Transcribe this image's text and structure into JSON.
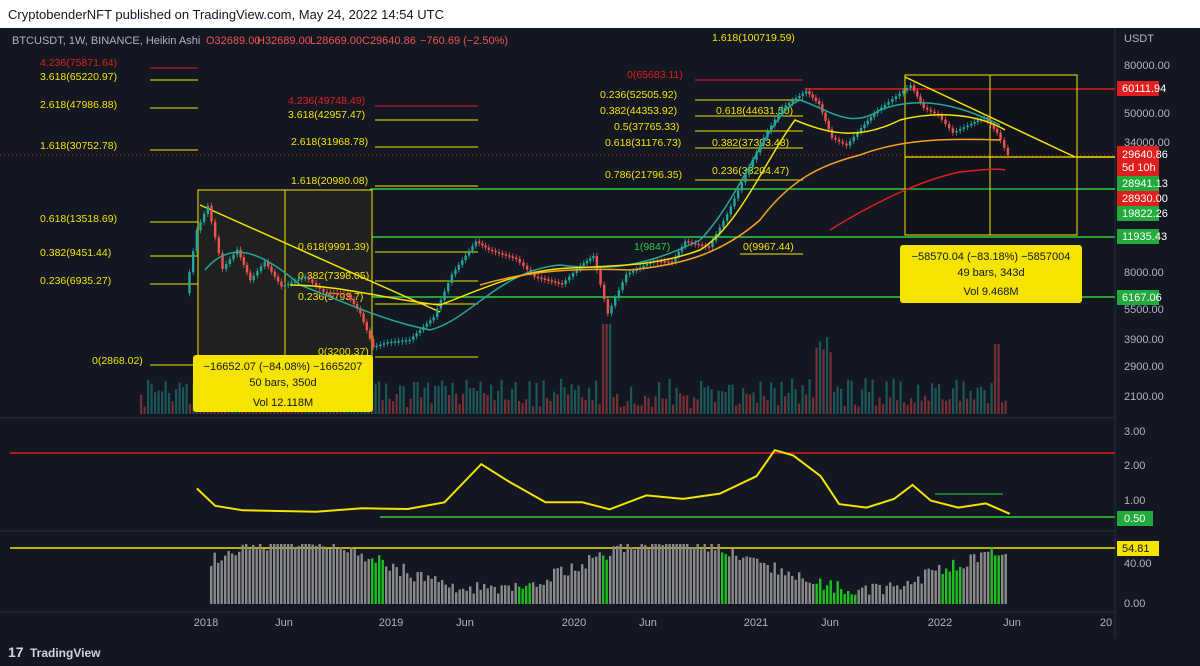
{
  "header": {
    "publisher": "CryptobenderNFT published on TradingView.com, May 24, 2022 14:54 UTC"
  },
  "legend": {
    "symbol": "BTCUSDT, 1W, BINANCE, Heikin Ashi",
    "open": "O32689.00",
    "high": "H32689.00",
    "low": "L28669.00",
    "close": "C29640.86",
    "change": "−760.69 (−2.50%)"
  },
  "footer": {
    "brand": "TradingView",
    "logo": "17"
  },
  "colors": {
    "bg": "#131722",
    "up": "#26a69a",
    "down": "#ef5350",
    "yellow": "#f5e300",
    "green": "#2ecc40",
    "red": "#e01e1e",
    "orange": "#f7a01d"
  },
  "chart_data": {
    "type": "line",
    "title": "",
    "x_axis": {
      "tick_labels": [
        "2018",
        "Jun",
        "2019",
        "Jun",
        "2020",
        "Jun",
        "2021",
        "Jun",
        "2022",
        "Jun",
        "20"
      ]
    },
    "price_axis": {
      "unit": "USDT",
      "scale": "log",
      "tick_labels": [
        "80000.00",
        "50000.00",
        "34000.00",
        "28930.00",
        "19822.26",
        "11935.43",
        "8000.00",
        "5500.00",
        "3900.00",
        "2900.00",
        "2100.00"
      ],
      "badges": [
        {
          "text": "60111.94",
          "color": "red"
        },
        {
          "text": "29640.86",
          "color": "red"
        },
        {
          "text": "5d 10h",
          "color": "red"
        },
        {
          "text": "28941.13",
          "color": "green"
        },
        {
          "text": "28930.00",
          "color": "red"
        },
        {
          "text": "19822.26",
          "color": "green"
        },
        {
          "text": "11935.43",
          "color": "green"
        },
        {
          "text": "6167.06",
          "color": "green"
        }
      ]
    },
    "fib_cycle_2017": {
      "labels": [
        "4.236(75871.64)",
        "3.618(65220.97)",
        "2.618(47986.88)",
        "1.618(30752.78)",
        "0.618(13518.69)",
        "0.382(9451.44)",
        "0.236(6935.27)",
        "0(2868.02)"
      ]
    },
    "fib_cycle_2019": {
      "labels": [
        "4.236(49748.49)",
        "3.618(42957.47)",
        "2.618(31968.78)",
        "1.618(20980.08)",
        "0.618(9991.39)",
        "0.382(7398.05)",
        "0.236(5793.7)",
        "0(3200.37)"
      ]
    },
    "fib_cycle_2021": {
      "labels": [
        "1.618(100719.59)",
        "0(65683.11)",
        "0.236(52505.92)",
        "0.382(44353.92)",
        "0.5(37765.33)",
        "0.618(31176.73)",
        "0.786(21796.35)",
        "0.618(44631.50)",
        "0.382(37393.48)",
        "0.236(33204.47)",
        "0(9967.44)",
        "1(9847)"
      ]
    },
    "measure_2018": {
      "lines": [
        "−16652.07 (−84.08%) −1665207",
        "50 bars, 350d",
        "Vol 12.118M"
      ]
    },
    "measure_2022": {
      "lines": [
        "−58570.04 (−83.18%) −5857004",
        "49 bars, 343d",
        "Vol 9.468M"
      ]
    },
    "price_series_weekly": [
      {
        "x": 2017.9,
        "p": 6500
      },
      {
        "x": 2017.96,
        "p": 13000
      },
      {
        "x": 2018.02,
        "p": 17000
      },
      {
        "x": 2018.06,
        "p": 12000
      },
      {
        "x": 2018.1,
        "p": 8500
      },
      {
        "x": 2018.18,
        "p": 10500
      },
      {
        "x": 2018.25,
        "p": 7500
      },
      {
        "x": 2018.33,
        "p": 9200
      },
      {
        "x": 2018.42,
        "p": 7000
      },
      {
        "x": 2018.55,
        "p": 7800
      },
      {
        "x": 2018.65,
        "p": 6600
      },
      {
        "x": 2018.78,
        "p": 6400
      },
      {
        "x": 2018.85,
        "p": 5200
      },
      {
        "x": 2018.92,
        "p": 3600
      },
      {
        "x": 2019.0,
        "p": 3800
      },
      {
        "x": 2019.12,
        "p": 3900
      },
      {
        "x": 2019.25,
        "p": 5000
      },
      {
        "x": 2019.35,
        "p": 8000
      },
      {
        "x": 2019.48,
        "p": 11500
      },
      {
        "x": 2019.55,
        "p": 10500
      },
      {
        "x": 2019.7,
        "p": 9500
      },
      {
        "x": 2019.8,
        "p": 7800
      },
      {
        "x": 2019.95,
        "p": 7200
      },
      {
        "x": 2020.05,
        "p": 8800
      },
      {
        "x": 2020.12,
        "p": 9800
      },
      {
        "x": 2020.2,
        "p": 5200
      },
      {
        "x": 2020.3,
        "p": 8000
      },
      {
        "x": 2020.45,
        "p": 9300
      },
      {
        "x": 2020.55,
        "p": 9200
      },
      {
        "x": 2020.62,
        "p": 11500
      },
      {
        "x": 2020.75,
        "p": 10800
      },
      {
        "x": 2020.85,
        "p": 15500
      },
      {
        "x": 2020.95,
        "p": 24000
      },
      {
        "x": 2021.05,
        "p": 36000
      },
      {
        "x": 2021.15,
        "p": 50000
      },
      {
        "x": 2021.28,
        "p": 60000
      },
      {
        "x": 2021.35,
        "p": 52000
      },
      {
        "x": 2021.42,
        "p": 36000
      },
      {
        "x": 2021.5,
        "p": 33000
      },
      {
        "x": 2021.58,
        "p": 40000
      },
      {
        "x": 2021.65,
        "p": 47000
      },
      {
        "x": 2021.75,
        "p": 55000
      },
      {
        "x": 2021.85,
        "p": 64000
      },
      {
        "x": 2021.92,
        "p": 50000
      },
      {
        "x": 2022.0,
        "p": 46000
      },
      {
        "x": 2022.08,
        "p": 38000
      },
      {
        "x": 2022.18,
        "p": 42000
      },
      {
        "x": 2022.25,
        "p": 45000
      },
      {
        "x": 2022.32,
        "p": 38000
      },
      {
        "x": 2022.38,
        "p": 29640
      }
    ],
    "indicator_mid": {
      "tick_labels": [
        "3.00",
        "2.00",
        "1.00"
      ],
      "badge": "0.50",
      "series": [
        {
          "x": 2017.95,
          "y": 1.35
        },
        {
          "x": 2018.05,
          "y": 0.85
        },
        {
          "x": 2018.2,
          "y": 0.72
        },
        {
          "x": 2018.4,
          "y": 0.7
        },
        {
          "x": 2018.6,
          "y": 0.68
        },
        {
          "x": 2018.85,
          "y": 0.78
        },
        {
          "x": 2019.1,
          "y": 0.76
        },
        {
          "x": 2019.3,
          "y": 0.95
        },
        {
          "x": 2019.5,
          "y": 2.05
        },
        {
          "x": 2019.65,
          "y": 1.55
        },
        {
          "x": 2019.85,
          "y": 0.95
        },
        {
          "x": 2020.05,
          "y": 0.95
        },
        {
          "x": 2020.2,
          "y": 0.75
        },
        {
          "x": 2020.4,
          "y": 1.15
        },
        {
          "x": 2020.6,
          "y": 1.05
        },
        {
          "x": 2020.8,
          "y": 1.2
        },
        {
          "x": 2021.0,
          "y": 1.7
        },
        {
          "x": 2021.1,
          "y": 2.45
        },
        {
          "x": 2021.2,
          "y": 2.3
        },
        {
          "x": 2021.35,
          "y": 1.7
        },
        {
          "x": 2021.45,
          "y": 0.9
        },
        {
          "x": 2021.6,
          "y": 0.8
        },
        {
          "x": 2021.75,
          "y": 1.05
        },
        {
          "x": 2021.85,
          "y": 1.45
        },
        {
          "x": 2021.95,
          "y": 1.0
        },
        {
          "x": 2022.1,
          "y": 0.8
        },
        {
          "x": 2022.25,
          "y": 0.92
        },
        {
          "x": 2022.38,
          "y": 0.62
        }
      ]
    },
    "indicator_low": {
      "tick_labels": [
        "40.00",
        "0.00"
      ],
      "badge": "54.81"
    }
  }
}
